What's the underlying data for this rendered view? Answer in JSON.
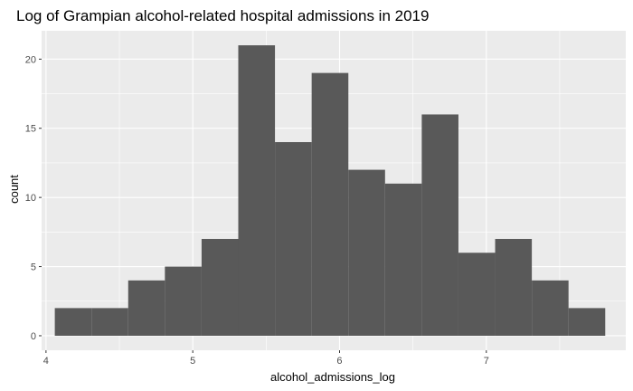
{
  "chart_data": {
    "type": "bar",
    "title": "Log of Grampian alcohol-related hospital admissions in 2019",
    "xlabel": "alcohol_admissions_log",
    "ylabel": "count",
    "xlim": [
      3.97,
      7.95
    ],
    "ylim": [
      -1.05,
      22.05
    ],
    "x_ticks": [
      4,
      5,
      6,
      7
    ],
    "x_tick_labels": [
      "4",
      "5",
      "6",
      "7"
    ],
    "y_ticks": [
      0,
      5,
      10,
      15,
      20
    ],
    "y_tick_labels": [
      "0",
      "5",
      "10",
      "15",
      "20"
    ],
    "grid": true,
    "panel_background": "#ebebeb",
    "grid_color": "#ffffff",
    "bar_color": "#595959",
    "bins": [
      {
        "x0": 4.06,
        "x1": 4.31,
        "count": 2
      },
      {
        "x0": 4.31,
        "x1": 4.56,
        "count": 2
      },
      {
        "x0": 4.56,
        "x1": 4.81,
        "count": 4
      },
      {
        "x0": 4.81,
        "x1": 5.06,
        "count": 5
      },
      {
        "x0": 5.06,
        "x1": 5.31,
        "count": 7
      },
      {
        "x0": 5.31,
        "x1": 5.56,
        "count": 21
      },
      {
        "x0": 5.56,
        "x1": 5.81,
        "count": 14
      },
      {
        "x0": 5.81,
        "x1": 6.06,
        "count": 19
      },
      {
        "x0": 6.06,
        "x1": 6.31,
        "count": 12
      },
      {
        "x0": 6.31,
        "x1": 6.56,
        "count": 11
      },
      {
        "x0": 6.56,
        "x1": 6.81,
        "count": 16
      },
      {
        "x0": 6.81,
        "x1": 7.06,
        "count": 6
      },
      {
        "x0": 7.06,
        "x1": 7.31,
        "count": 7
      },
      {
        "x0": 7.31,
        "x1": 7.56,
        "count": 4
      },
      {
        "x0": 7.56,
        "x1": 7.81,
        "count": 2
      }
    ]
  }
}
